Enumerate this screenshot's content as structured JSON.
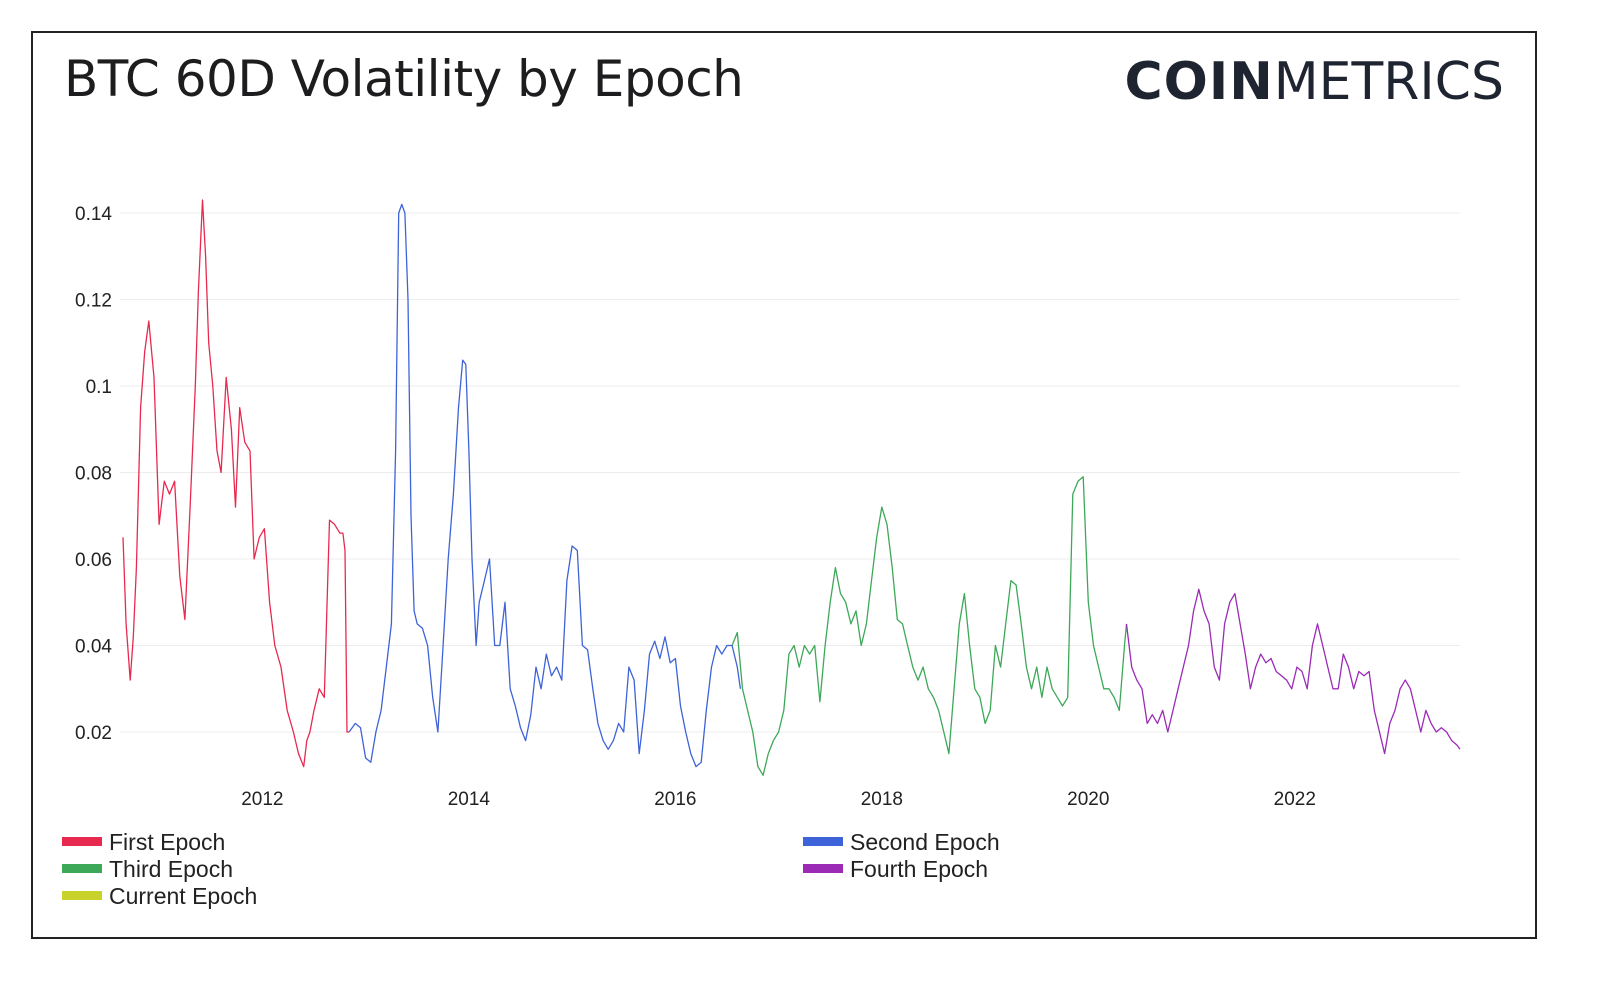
{
  "header": {
    "title": "BTC 60D Volatility by Epoch",
    "logo_bold": "COIN",
    "logo_light": "METRICS"
  },
  "chart_data": {
    "type": "line",
    "title": "BTC 60D Volatility by Epoch",
    "xlabel": "",
    "ylabel": "",
    "xlim": [
      2010.65,
      2023.6
    ],
    "ylim": [
      0.01,
      0.145
    ],
    "x_ticks": [
      "2012",
      "2014",
      "2016",
      "2018",
      "2020",
      "2022"
    ],
    "y_ticks": [
      "0.02",
      "0.04",
      "0.06",
      "0.08",
      "0.1",
      "0.12",
      "0.14"
    ],
    "grid": true,
    "legend_position": "bottom",
    "series": [
      {
        "name": "First Epoch",
        "color": "#e8294f",
        "x": [
          2010.65,
          2010.68,
          2010.72,
          2010.75,
          2010.78,
          2010.82,
          2010.86,
          2010.9,
          2010.95,
          2011.0,
          2011.05,
          2011.1,
          2011.15,
          2011.2,
          2011.25,
          2011.3,
          2011.35,
          2011.38,
          2011.42,
          2011.45,
          2011.48,
          2011.52,
          2011.56,
          2011.6,
          2011.65,
          2011.7,
          2011.74,
          2011.78,
          2011.83,
          2011.88,
          2011.92,
          2011.97,
          2012.02,
          2012.07,
          2012.12,
          2012.18,
          2012.24,
          2012.3,
          2012.35,
          2012.4,
          2012.43,
          2012.46,
          2012.5,
          2012.55,
          2012.6,
          2012.65,
          2012.7,
          2012.75,
          2012.78,
          2012.8,
          2012.82,
          2012.84
        ],
        "y": [
          0.065,
          0.045,
          0.032,
          0.042,
          0.058,
          0.095,
          0.108,
          0.115,
          0.102,
          0.068,
          0.078,
          0.075,
          0.078,
          0.056,
          0.046,
          0.072,
          0.1,
          0.122,
          0.143,
          0.13,
          0.11,
          0.1,
          0.085,
          0.08,
          0.102,
          0.09,
          0.072,
          0.095,
          0.087,
          0.085,
          0.06,
          0.065,
          0.067,
          0.05,
          0.04,
          0.035,
          0.025,
          0.02,
          0.015,
          0.012,
          0.018,
          0.02,
          0.025,
          0.03,
          0.028,
          0.069,
          0.068,
          0.066,
          0.066,
          0.062,
          0.02,
          0.02
        ]
      },
      {
        "name": "Second Epoch",
        "color": "#3e63d8",
        "x": [
          2012.84,
          2012.9,
          2012.95,
          2013.0,
          2013.05,
          2013.1,
          2013.15,
          2013.2,
          2013.25,
          2013.29,
          2013.32,
          2013.35,
          2013.38,
          2013.41,
          2013.44,
          2013.47,
          2013.5,
          2013.55,
          2013.6,
          2013.65,
          2013.7,
          2013.75,
          2013.8,
          2013.85,
          2013.9,
          2013.94,
          2013.97,
          2014.0,
          2014.03,
          2014.07,
          2014.1,
          2014.15,
          2014.2,
          2014.25,
          2014.3,
          2014.35,
          2014.4,
          2014.45,
          2014.5,
          2014.55,
          2014.6,
          2014.65,
          2014.7,
          2014.75,
          2014.8,
          2014.85,
          2014.9,
          2014.95,
          2015.0,
          2015.05,
          2015.1,
          2015.15,
          2015.2,
          2015.25,
          2015.3,
          2015.35,
          2015.4,
          2015.45,
          2015.5,
          2015.55,
          2015.6,
          2015.65,
          2015.7,
          2015.75,
          2015.8,
          2015.85,
          2015.9,
          2015.95,
          2016.0,
          2016.05,
          2016.1,
          2016.15,
          2016.2,
          2016.25,
          2016.3,
          2016.35,
          2016.4,
          2016.45,
          2016.5,
          2016.55,
          2016.6,
          2016.63
        ],
        "y": [
          0.02,
          0.022,
          0.021,
          0.014,
          0.013,
          0.02,
          0.025,
          0.035,
          0.045,
          0.085,
          0.14,
          0.142,
          0.14,
          0.12,
          0.07,
          0.048,
          0.045,
          0.044,
          0.04,
          0.028,
          0.02,
          0.04,
          0.06,
          0.075,
          0.095,
          0.106,
          0.105,
          0.085,
          0.06,
          0.04,
          0.05,
          0.055,
          0.06,
          0.04,
          0.04,
          0.05,
          0.03,
          0.026,
          0.021,
          0.018,
          0.024,
          0.035,
          0.03,
          0.038,
          0.033,
          0.035,
          0.032,
          0.055,
          0.063,
          0.062,
          0.04,
          0.039,
          0.03,
          0.022,
          0.018,
          0.016,
          0.018,
          0.022,
          0.02,
          0.035,
          0.032,
          0.015,
          0.025,
          0.038,
          0.041,
          0.037,
          0.042,
          0.036,
          0.037,
          0.026,
          0.02,
          0.015,
          0.012,
          0.013,
          0.025,
          0.035,
          0.04,
          0.038,
          0.04,
          0.04,
          0.035,
          0.03
        ]
      },
      {
        "name": "Third Epoch",
        "color": "#3da858",
        "x": [
          2016.55,
          2016.6,
          2016.65,
          2016.7,
          2016.75,
          2016.8,
          2016.85,
          2016.9,
          2016.95,
          2017.0,
          2017.05,
          2017.1,
          2017.15,
          2017.2,
          2017.25,
          2017.3,
          2017.35,
          2017.4,
          2017.45,
          2017.5,
          2017.55,
          2017.6,
          2017.65,
          2017.7,
          2017.75,
          2017.8,
          2017.85,
          2017.9,
          2017.95,
          2018.0,
          2018.05,
          2018.1,
          2018.15,
          2018.2,
          2018.25,
          2018.3,
          2018.35,
          2018.4,
          2018.45,
          2018.5,
          2018.55,
          2018.6,
          2018.65,
          2018.7,
          2018.75,
          2018.8,
          2018.85,
          2018.9,
          2018.95,
          2019.0,
          2019.05,
          2019.1,
          2019.15,
          2019.2,
          2019.25,
          2019.3,
          2019.35,
          2019.4,
          2019.45,
          2019.5,
          2019.55,
          2019.6,
          2019.65,
          2019.7,
          2019.75,
          2019.8,
          2019.85,
          2019.9,
          2019.95,
          2020.0,
          2020.05,
          2020.1,
          2020.15,
          2020.2,
          2020.25,
          2020.3,
          2020.35,
          2020.37
        ],
        "y": [
          0.04,
          0.043,
          0.03,
          0.025,
          0.02,
          0.012,
          0.01,
          0.015,
          0.018,
          0.02,
          0.025,
          0.038,
          0.04,
          0.035,
          0.04,
          0.038,
          0.04,
          0.027,
          0.04,
          0.05,
          0.058,
          0.052,
          0.05,
          0.045,
          0.048,
          0.04,
          0.045,
          0.055,
          0.065,
          0.072,
          0.068,
          0.058,
          0.046,
          0.045,
          0.04,
          0.035,
          0.032,
          0.035,
          0.03,
          0.028,
          0.025,
          0.02,
          0.015,
          0.03,
          0.045,
          0.052,
          0.04,
          0.03,
          0.028,
          0.022,
          0.025,
          0.04,
          0.035,
          0.045,
          0.055,
          0.054,
          0.045,
          0.035,
          0.03,
          0.035,
          0.028,
          0.035,
          0.03,
          0.028,
          0.026,
          0.028,
          0.075,
          0.078,
          0.079,
          0.05,
          0.04,
          0.035,
          0.03,
          0.03,
          0.028,
          0.025,
          0.04,
          0.045
        ]
      },
      {
        "name": "Fourth Epoch",
        "color": "#9b2bb5",
        "x": [
          2020.37,
          2020.42,
          2020.47,
          2020.52,
          2020.57,
          2020.62,
          2020.67,
          2020.72,
          2020.77,
          2020.82,
          2020.87,
          2020.92,
          2020.97,
          2021.02,
          2021.07,
          2021.12,
          2021.17,
          2021.22,
          2021.27,
          2021.32,
          2021.37,
          2021.42,
          2021.47,
          2021.52,
          2021.57,
          2021.62,
          2021.67,
          2021.72,
          2021.77,
          2021.82,
          2021.87,
          2021.92,
          2021.97,
          2022.02,
          2022.07,
          2022.12,
          2022.17,
          2022.22,
          2022.27,
          2022.32,
          2022.37,
          2022.42,
          2022.47,
          2022.52,
          2022.57,
          2022.62,
          2022.67,
          2022.72,
          2022.77,
          2022.82,
          2022.87,
          2022.92,
          2022.97,
          2023.02,
          2023.07,
          2023.12,
          2023.17,
          2023.22,
          2023.27,
          2023.32,
          2023.37,
          2023.42,
          2023.47,
          2023.52,
          2023.57,
          2023.6
        ],
        "y": [
          0.045,
          0.035,
          0.032,
          0.03,
          0.022,
          0.024,
          0.022,
          0.025,
          0.02,
          0.025,
          0.03,
          0.035,
          0.04,
          0.048,
          0.053,
          0.048,
          0.045,
          0.035,
          0.032,
          0.045,
          0.05,
          0.052,
          0.045,
          0.038,
          0.03,
          0.035,
          0.038,
          0.036,
          0.037,
          0.034,
          0.033,
          0.032,
          0.03,
          0.035,
          0.034,
          0.03,
          0.04,
          0.045,
          0.04,
          0.035,
          0.03,
          0.03,
          0.038,
          0.035,
          0.03,
          0.034,
          0.033,
          0.034,
          0.025,
          0.02,
          0.015,
          0.022,
          0.025,
          0.03,
          0.032,
          0.03,
          0.025,
          0.02,
          0.025,
          0.022,
          0.02,
          0.021,
          0.02,
          0.018,
          0.017,
          0.016
        ]
      }
    ],
    "legend": [
      {
        "name": "First Epoch",
        "color": "#e8294f"
      },
      {
        "name": "Second Epoch",
        "color": "#3e63d8"
      },
      {
        "name": "Third Epoch",
        "color": "#3da858"
      },
      {
        "name": "Fourth Epoch",
        "color": "#9b2bb5"
      },
      {
        "name": "Current Epoch",
        "color": "#c9d22b"
      }
    ]
  }
}
